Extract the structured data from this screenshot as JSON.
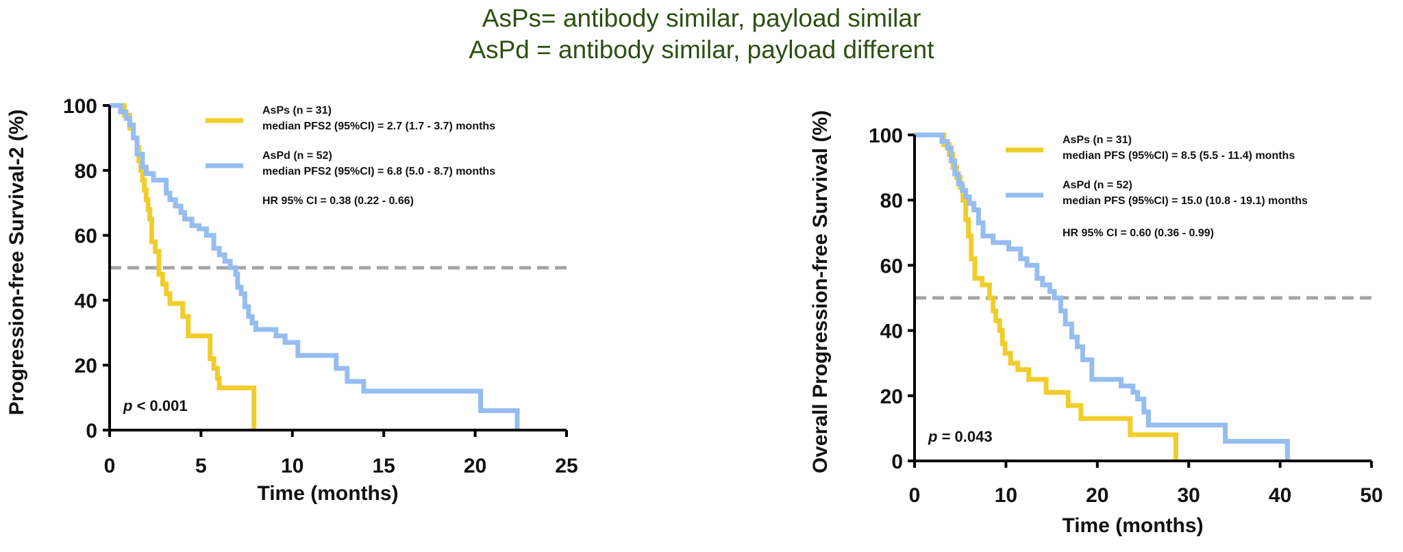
{
  "header": {
    "line1": "AsPs= antibody similar, payload similar",
    "line2": "AsPd = antibody similar, payload different"
  },
  "colors": {
    "asps": "#f1cd2c",
    "aspd": "#96bdf0",
    "ref": "#a4a4a4",
    "header": "#2d4f12"
  },
  "chart_data": [
    {
      "type": "line",
      "step": true,
      "xlabel": "Time (months)",
      "ylabel": "Progression-free Survival-2 (%)",
      "xlim": [
        0,
        25
      ],
      "ylim": [
        0,
        100
      ],
      "xticks": [
        "0",
        "5",
        "10",
        "15",
        "20",
        "25"
      ],
      "yticks": [
        "0",
        "20",
        "40",
        "60",
        "80",
        "100"
      ],
      "reference_line_y": 50,
      "legend": [
        {
          "label": "AsPs (n = 31)",
          "detail": "median PFS2 (95%CI) =  2.7 (1.7 - 3.7) months"
        },
        {
          "label": "AsPd (n = 52)",
          "detail": "median PFS2 (95%CI) =  6.8 (5.0 - 8.7) months"
        }
      ],
      "hr": "HR 95% CI = 0.38 (0.22 - 0.66)",
      "p_label": "p",
      "p_value": "< 0.001",
      "series": [
        {
          "name": "AsPs (n = 31)",
          "color": "#f1cd2c",
          "x": [
            0,
            0.8,
            1.1,
            1.3,
            1.5,
            1.6,
            1.7,
            1.8,
            1.9,
            2.0,
            2.1,
            2.2,
            2.3,
            2.5,
            2.7,
            2.9,
            3.1,
            3.3,
            3.6,
            4.0,
            4.3,
            5.3,
            5.5,
            5.7,
            5.9,
            6.0,
            6.2,
            7.7,
            7.9
          ],
          "y": [
            100,
            97,
            93,
            90,
            87,
            83,
            80,
            77,
            74,
            71,
            68,
            65,
            58,
            55,
            48,
            45,
            42,
            39,
            39,
            35,
            29,
            29,
            22,
            19,
            16,
            13,
            13,
            13,
            0
          ]
        },
        {
          "name": "AsPd (n = 52)",
          "color": "#96bdf0",
          "x": [
            0,
            0.6,
            0.9,
            1.1,
            1.3,
            1.5,
            1.8,
            2.0,
            2.4,
            3.1,
            3.3,
            3.6,
            3.9,
            4.1,
            4.5,
            4.9,
            5.3,
            5.7,
            6.0,
            6.3,
            6.6,
            6.9,
            7.0,
            7.2,
            7.4,
            7.6,
            7.8,
            8.0,
            9.1,
            9.6,
            10.3,
            12.4,
            13.0,
            13.9,
            20.3,
            22.3
          ],
          "y": [
            100,
            98,
            96,
            94,
            90,
            85,
            81,
            79,
            77,
            73,
            71,
            69,
            67,
            65,
            63,
            62,
            60,
            56,
            54,
            52,
            50,
            48,
            44,
            42,
            38,
            35,
            33,
            31,
            29,
            27,
            23,
            19,
            15,
            12,
            6,
            0
          ]
        }
      ]
    },
    {
      "type": "line",
      "step": true,
      "xlabel": "Time (months)",
      "ylabel": "Overall Progression-free Survival (%)",
      "xlim": [
        0,
        50
      ],
      "ylim": [
        0,
        100
      ],
      "xticks": [
        "0",
        "10",
        "20",
        "30",
        "40",
        "50"
      ],
      "yticks": [
        "0",
        "20",
        "40",
        "60",
        "80",
        "100"
      ],
      "reference_line_y": 50,
      "legend": [
        {
          "label": "AsPs (n = 31)",
          "detail": "median PFS (95%CI) =  8.5 (5.5 - 11.4) months"
        },
        {
          "label": "AsPd (n = 52)",
          "detail": "median PFS (95%CI) = 15.0 (10.8 - 19.1) months"
        }
      ],
      "hr": "HR 95% CI = 0.60 (0.36 - 0.99)",
      "p_label": "p",
      "p_value": "= 0.043",
      "series": [
        {
          "name": "AsPs (n = 31)",
          "color": "#f1cd2c",
          "x": [
            0,
            3.2,
            3.8,
            4.2,
            4.6,
            5.0,
            5.3,
            5.6,
            5.9,
            6.2,
            6.6,
            7.4,
            8.2,
            8.6,
            8.9,
            9.3,
            9.6,
            9.9,
            10.5,
            11.3,
            12.5,
            14.4,
            16.8,
            18.2,
            23.6,
            28.6
          ],
          "y": [
            100,
            97,
            94,
            90,
            87,
            84,
            80,
            74,
            69,
            62,
            56,
            54,
            50,
            46,
            43,
            40,
            36,
            33,
            30,
            28,
            25,
            21,
            17,
            13,
            8,
            0
          ]
        },
        {
          "name": "AsPd (n = 52)",
          "color": "#96bdf0",
          "x": [
            0,
            3.0,
            3.6,
            4.0,
            4.4,
            4.8,
            5.2,
            5.6,
            6.0,
            6.5,
            7.0,
            7.5,
            8.6,
            10.3,
            11.6,
            12.3,
            13.4,
            14.0,
            14.8,
            15.3,
            16.0,
            16.5,
            17.2,
            17.8,
            18.4,
            19.4,
            22.6,
            23.9,
            24.4,
            25.1,
            25.6,
            34.0,
            40.8
          ],
          "y": [
            100,
            98,
            96,
            92,
            88,
            85,
            83,
            81,
            79,
            77,
            73,
            69,
            67,
            65,
            62,
            60,
            56,
            54,
            52,
            50,
            46,
            42,
            38,
            35,
            31,
            25,
            23,
            21,
            19,
            15,
            11,
            6,
            0
          ]
        }
      ]
    }
  ]
}
